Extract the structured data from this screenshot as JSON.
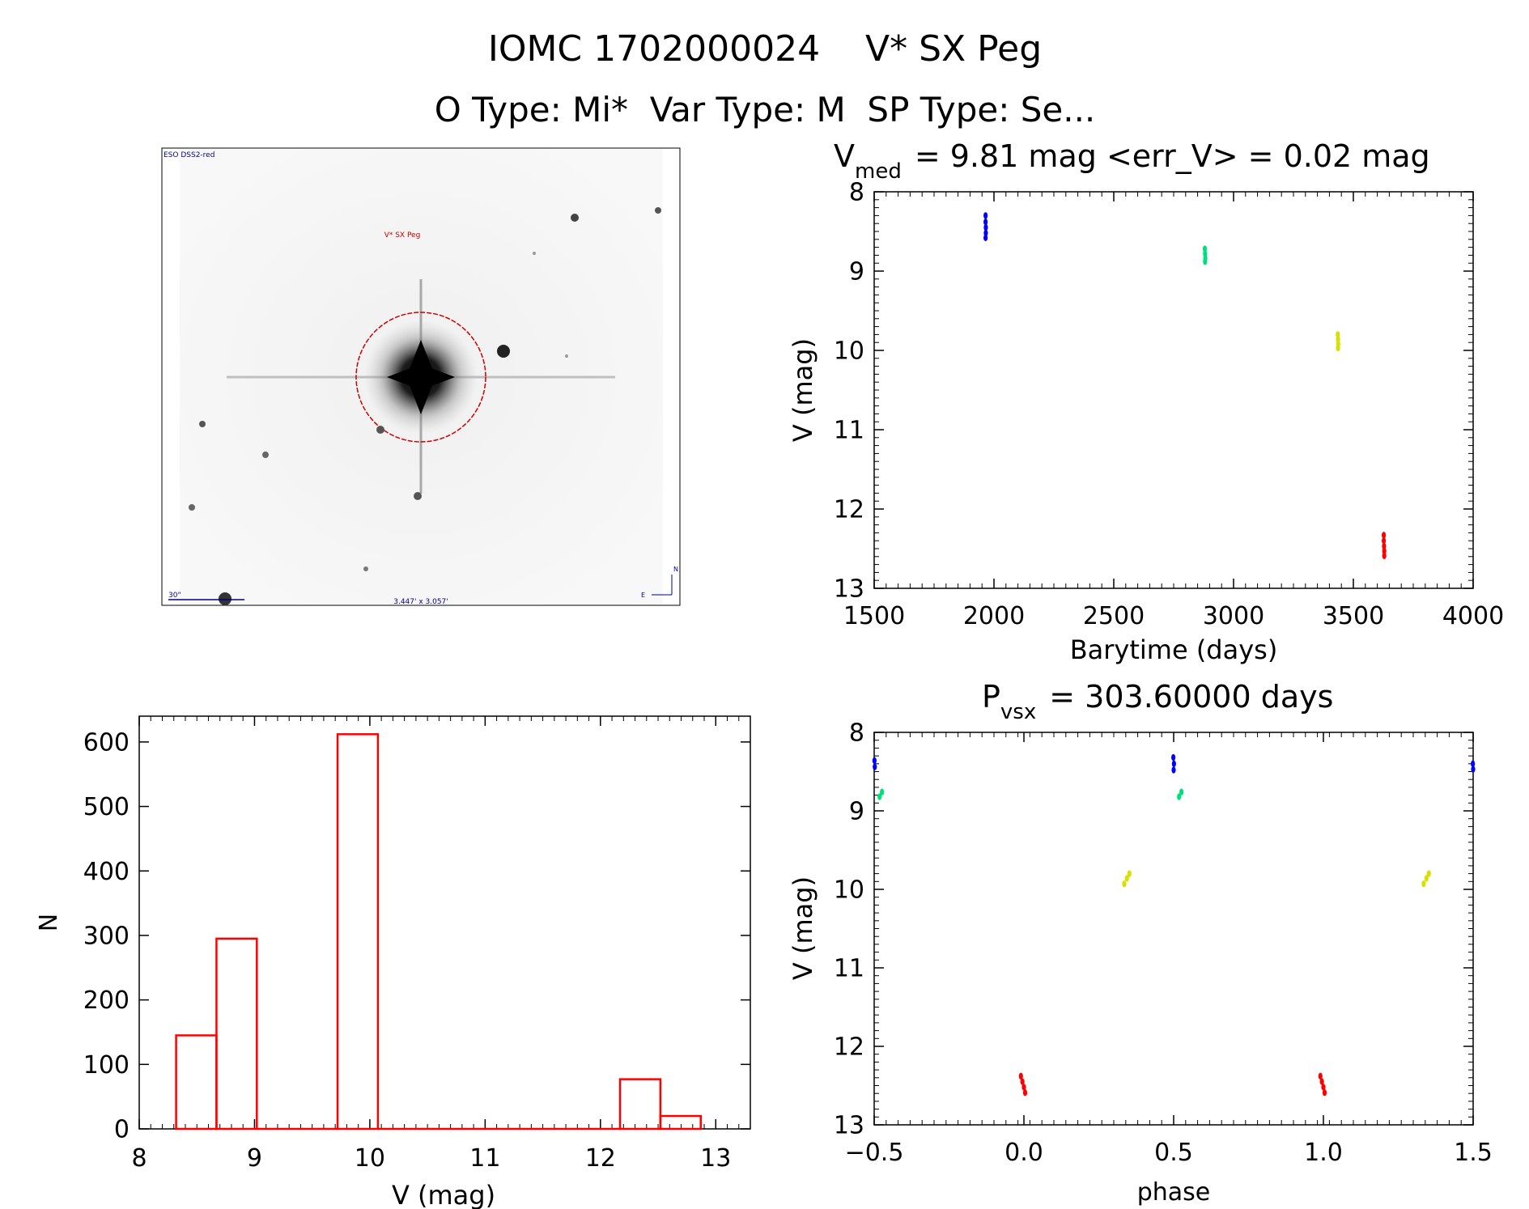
{
  "header": {
    "title": "IOMC 1702000024    V* SX Peg",
    "subtitle": "O Type: Mi*  Var Type: M  SP Type: Se..."
  },
  "finder": {
    "survey_label": "ESO DSS2-red",
    "object_label": "V* SX Peg",
    "scale_label": "30\"",
    "size_label": "3.447' x 3.057'",
    "north_label": "N",
    "east_label": "E"
  },
  "colors": {
    "phase_blue": "#0000ff",
    "phase_green": "#00e07a",
    "phase_yellow": "#d8e000",
    "phase_red": "#ff0000",
    "histogram": "#ff0000",
    "finder_circle": "#cc0000",
    "finder_label": "#00008b"
  },
  "chart_data": [
    {
      "id": "lightcurve",
      "type": "scatter",
      "title_main": "V",
      "title_sub": "med",
      "title_rest": "= 9.81 mag <err_V> = 0.02 mag",
      "xlabel": "Barytime (days)",
      "ylabel": "V (mag)",
      "xlim": [
        1500,
        4000
      ],
      "ylim": [
        8,
        13
      ],
      "y_inverted": true,
      "xticks": [
        "1500",
        "2000",
        "2500",
        "3000",
        "3500",
        "4000"
      ],
      "yticks": [
        "8",
        "9",
        "10",
        "11",
        "12",
        "13"
      ],
      "series": [
        {
          "color": "#0000ff",
          "points": [
            [
              1965,
              8.3
            ],
            [
              1965,
              8.38
            ],
            [
              1966,
              8.45
            ],
            [
              1966,
              8.52
            ],
            [
              1965,
              8.58
            ]
          ]
        },
        {
          "color": "#00e07a",
          "points": [
            [
              2880,
              8.72
            ],
            [
              2881,
              8.78
            ],
            [
              2882,
              8.84
            ],
            [
              2881,
              8.88
            ]
          ]
        },
        {
          "color": "#d8e000",
          "points": [
            [
              3435,
              9.8
            ],
            [
              3436,
              9.86
            ],
            [
              3437,
              9.92
            ],
            [
              3436,
              9.97
            ]
          ]
        },
        {
          "color": "#ff0000",
          "points": [
            [
              3627,
              12.33
            ],
            [
              3627,
              12.4
            ],
            [
              3628,
              12.47
            ],
            [
              3629,
              12.53
            ],
            [
              3629,
              12.59
            ]
          ]
        }
      ]
    },
    {
      "id": "phased",
      "type": "scatter",
      "title_main": "P",
      "title_sub": "vsx",
      "title_rest": "= 303.60000 days",
      "xlabel": "phase",
      "ylabel": "V (mag)",
      "xlim": [
        -0.5,
        1.5
      ],
      "ylim": [
        8,
        13
      ],
      "y_inverted": true,
      "xticks": [
        "−0.5",
        "0.0",
        "0.5",
        "1.0",
        "1.5"
      ],
      "yticks": [
        "8",
        "9",
        "10",
        "11",
        "12",
        "13"
      ],
      "series": [
        {
          "color": "#0000ff",
          "points": [
            [
              -0.499,
              8.36
            ],
            [
              -0.498,
              8.44
            ],
            [
              0.499,
              8.32
            ],
            [
              0.501,
              8.4
            ],
            [
              0.5,
              8.48
            ],
            [
              1.499,
              8.4
            ],
            [
              1.5,
              8.47
            ]
          ]
        },
        {
          "color": "#00e07a",
          "points": [
            [
              -0.482,
              8.82
            ],
            [
              -0.474,
              8.76
            ],
            [
              0.518,
              8.82
            ],
            [
              0.526,
              8.76
            ]
          ]
        },
        {
          "color": "#d8e000",
          "points": [
            [
              0.335,
              9.93
            ],
            [
              0.344,
              9.86
            ],
            [
              0.352,
              9.8
            ],
            [
              1.335,
              9.93
            ],
            [
              1.344,
              9.86
            ],
            [
              1.352,
              9.8
            ]
          ]
        },
        {
          "color": "#ff0000",
          "points": [
            [
              -0.01,
              12.38
            ],
            [
              -0.005,
              12.45
            ],
            [
              0.0,
              12.52
            ],
            [
              0.004,
              12.59
            ],
            [
              0.99,
              12.38
            ],
            [
              0.995,
              12.45
            ],
            [
              1.0,
              12.52
            ],
            [
              1.004,
              12.59
            ]
          ]
        }
      ]
    },
    {
      "id": "histogram",
      "type": "bar",
      "xlabel": "V (mag)",
      "ylabel": "N",
      "xlim": [
        8,
        13.3
      ],
      "ylim": [
        0,
        640
      ],
      "xticks": [
        "8",
        "9",
        "10",
        "11",
        "12",
        "13"
      ],
      "yticks": [
        "0",
        "100",
        "200",
        "300",
        "400",
        "500",
        "600"
      ],
      "bins": [
        {
          "x0": 8.32,
          "x1": 8.67,
          "value": 145
        },
        {
          "x0": 8.67,
          "x1": 9.02,
          "value": 295
        },
        {
          "x0": 9.02,
          "x1": 9.37,
          "value": 0
        },
        {
          "x0": 9.37,
          "x1": 9.72,
          "value": 0
        },
        {
          "x0": 9.72,
          "x1": 10.07,
          "value": 612
        },
        {
          "x0": 10.07,
          "x1": 10.42,
          "value": 0
        },
        {
          "x0": 10.42,
          "x1": 10.77,
          "value": 0
        },
        {
          "x0": 10.77,
          "x1": 11.12,
          "value": 0
        },
        {
          "x0": 11.12,
          "x1": 11.47,
          "value": 0
        },
        {
          "x0": 11.47,
          "x1": 11.82,
          "value": 0
        },
        {
          "x0": 11.82,
          "x1": 12.17,
          "value": 0
        },
        {
          "x0": 12.17,
          "x1": 12.52,
          "value": 77
        },
        {
          "x0": 12.52,
          "x1": 12.87,
          "value": 20
        }
      ]
    }
  ]
}
